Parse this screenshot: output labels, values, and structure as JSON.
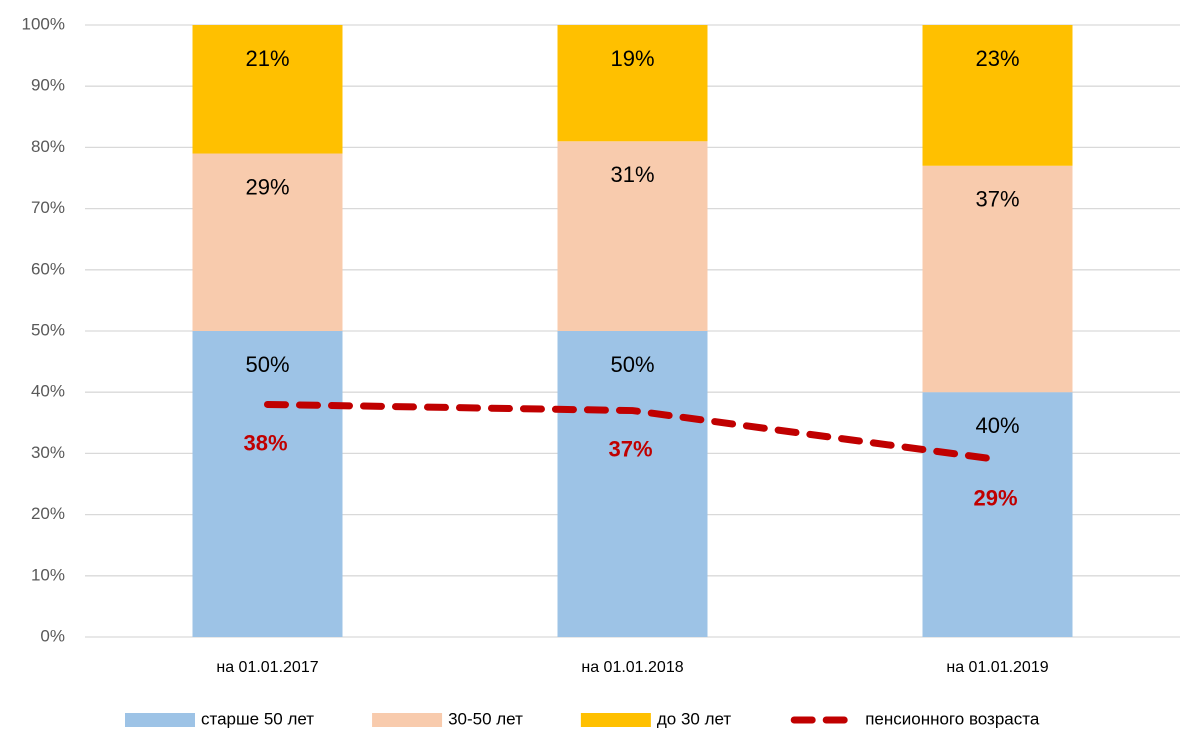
{
  "chart_data": {
    "type": "bar",
    "categories": [
      "на 01.01.2017",
      "на 01.01.2018",
      "на 01.01.2019"
    ],
    "stacked": true,
    "series": [
      {
        "name": "старше 50 лет",
        "color": "#9dc3e6",
        "values": [
          50,
          50,
          40
        ],
        "value_labels": [
          "50%",
          "50%",
          "40%"
        ]
      },
      {
        "name": "30-50 лет",
        "color": "#f8cbad",
        "values": [
          29,
          31,
          37
        ],
        "value_labels": [
          "29%",
          "31%",
          "37%"
        ]
      },
      {
        "name": "до 30 лет",
        "color": "#ffc000",
        "values": [
          21,
          19,
          23
        ],
        "value_labels": [
          "21%",
          "19%",
          "23%"
        ]
      },
      {
        "name": "пенсионного возраста",
        "color": "#c00000",
        "type": "line",
        "dashed": true,
        "values": [
          38,
          37,
          29
        ],
        "value_labels": [
          "38%",
          "37%",
          "29%"
        ]
      }
    ],
    "ylim": [
      0,
      100
    ],
    "yticks": [
      {
        "value": 0,
        "label": "0%"
      },
      {
        "value": 10,
        "label": "10%"
      },
      {
        "value": 20,
        "label": "20%"
      },
      {
        "value": 30,
        "label": "30%"
      },
      {
        "value": 40,
        "label": "40%"
      },
      {
        "value": 50,
        "label": "50%"
      },
      {
        "value": 60,
        "label": "60%"
      },
      {
        "value": 70,
        "label": "70%"
      },
      {
        "value": 80,
        "label": "80%"
      },
      {
        "value": 90,
        "label": "90%"
      },
      {
        "value": 100,
        "label": "100%"
      }
    ],
    "grid": true,
    "legend": "bottom"
  }
}
